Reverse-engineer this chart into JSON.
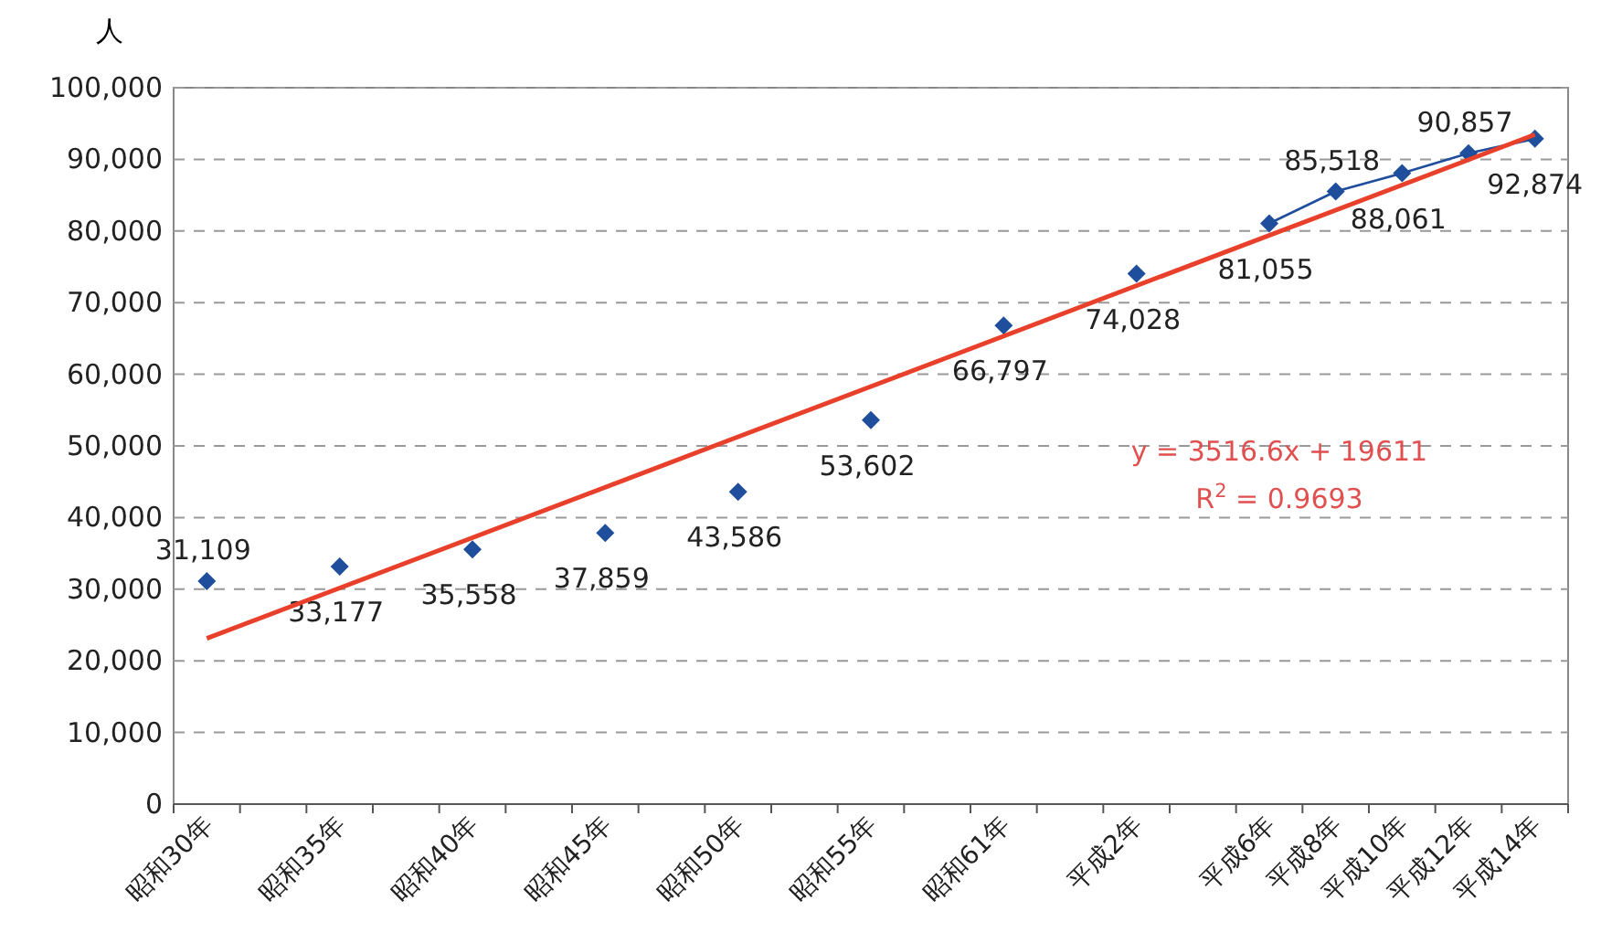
{
  "chart_data": {
    "type": "line",
    "ylabel": "人",
    "categories": [
      "昭和30年",
      null,
      "昭和35年",
      null,
      "昭和40年",
      null,
      "昭和45年",
      null,
      "昭和50年",
      null,
      "昭和55年",
      null,
      "昭和61年",
      null,
      "平成2年",
      null,
      "平成6年",
      "平成8年",
      "平成10年",
      "平成12年",
      "平成14年"
    ],
    "series": [
      {
        "color": "#1f4e9c",
        "marker": "diamond",
        "values": [
          31109,
          null,
          33177,
          null,
          35558,
          null,
          37859,
          null,
          43586,
          null,
          53602,
          null,
          66797,
          null,
          74028,
          null,
          81055,
          85518,
          88061,
          90857,
          92874
        ],
        "value_labels": [
          "31,109",
          null,
          "33,177",
          null,
          "35,558",
          null,
          "37,859",
          null,
          "43,586",
          null,
          "53,602",
          null,
          "66,797",
          null,
          "74,028",
          null,
          "81,055",
          "85,518",
          "88,061",
          "90,857",
          "92,874"
        ]
      },
      {
        "color": "#e8402a",
        "marker": "none",
        "x": [
          "昭和30年",
          "平成14年"
        ],
        "values": [
          23128,
          93460
        ]
      }
    ],
    "ylim": [
      0,
      100000
    ],
    "yticks": [
      0,
      {
        "value": 10000,
        "label": "10,000"
      },
      {
        "value": 20000,
        "label": "20,000"
      },
      {
        "value": 30000,
        "label": "30,000"
      },
      {
        "value": 40000,
        "label": "40,000"
      },
      {
        "value": 50000,
        "label": "50,000"
      },
      {
        "value": 60000,
        "label": "60,000"
      },
      {
        "value": 70000,
        "label": "70,000"
      },
      {
        "value": 80000,
        "label": "80,000"
      },
      {
        "value": 90000,
        "label": "90,000"
      },
      {
        "value": 100000,
        "label": "100,000"
      }
    ],
    "grid": "y",
    "annotations": [
      "y = 3516.6x + 19611",
      "R$^{2}$ = 0.9693"
    ]
  }
}
